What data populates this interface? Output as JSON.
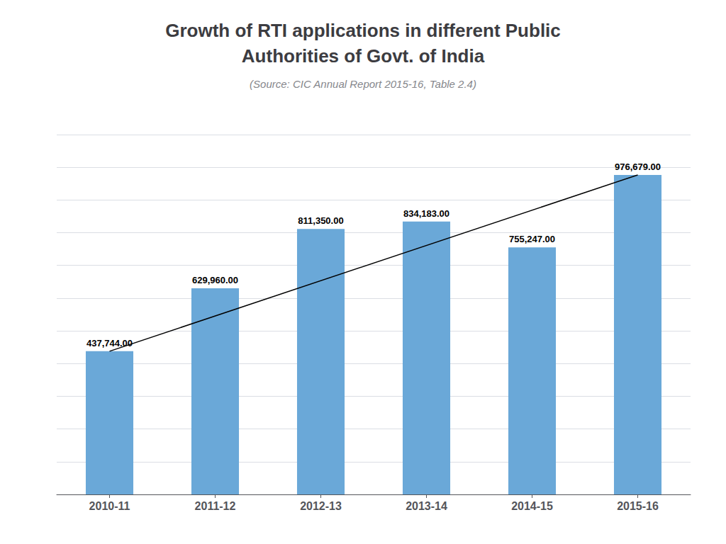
{
  "chart_data": {
    "type": "bar",
    "title": "Growth of RTI applications in different Public\nAuthorities of Govt. of India",
    "subtitle": "(Source: CIC Annual Report 2015-16, Table 2.4)",
    "categories": [
      "2010-11",
      "2011-12",
      "2012-13",
      "2013-14",
      "2014-15",
      "2015-16"
    ],
    "series": [
      {
        "type": "bar",
        "color": "#6AA8D8",
        "values": [
          437744,
          629960,
          811350,
          834183,
          755247,
          976679
        ],
        "value_labels": [
          "437,744.00",
          "629,960.00",
          "811,350.00",
          "834,183.00",
          "755,247.00",
          "976,679.00"
        ]
      },
      {
        "type": "line",
        "color": "#000000",
        "line_style": "solid",
        "values": [
          437744,
          null,
          null,
          null,
          null,
          976679
        ]
      }
    ],
    "ylim": [
      0,
      1100000
    ],
    "yticks": [
      0,
      100000,
      200000,
      300000,
      400000,
      500000,
      600000,
      700000,
      800000,
      900000,
      1000000,
      1100000
    ],
    "grid": true,
    "data_labels": true,
    "tick_labels": "x"
  }
}
